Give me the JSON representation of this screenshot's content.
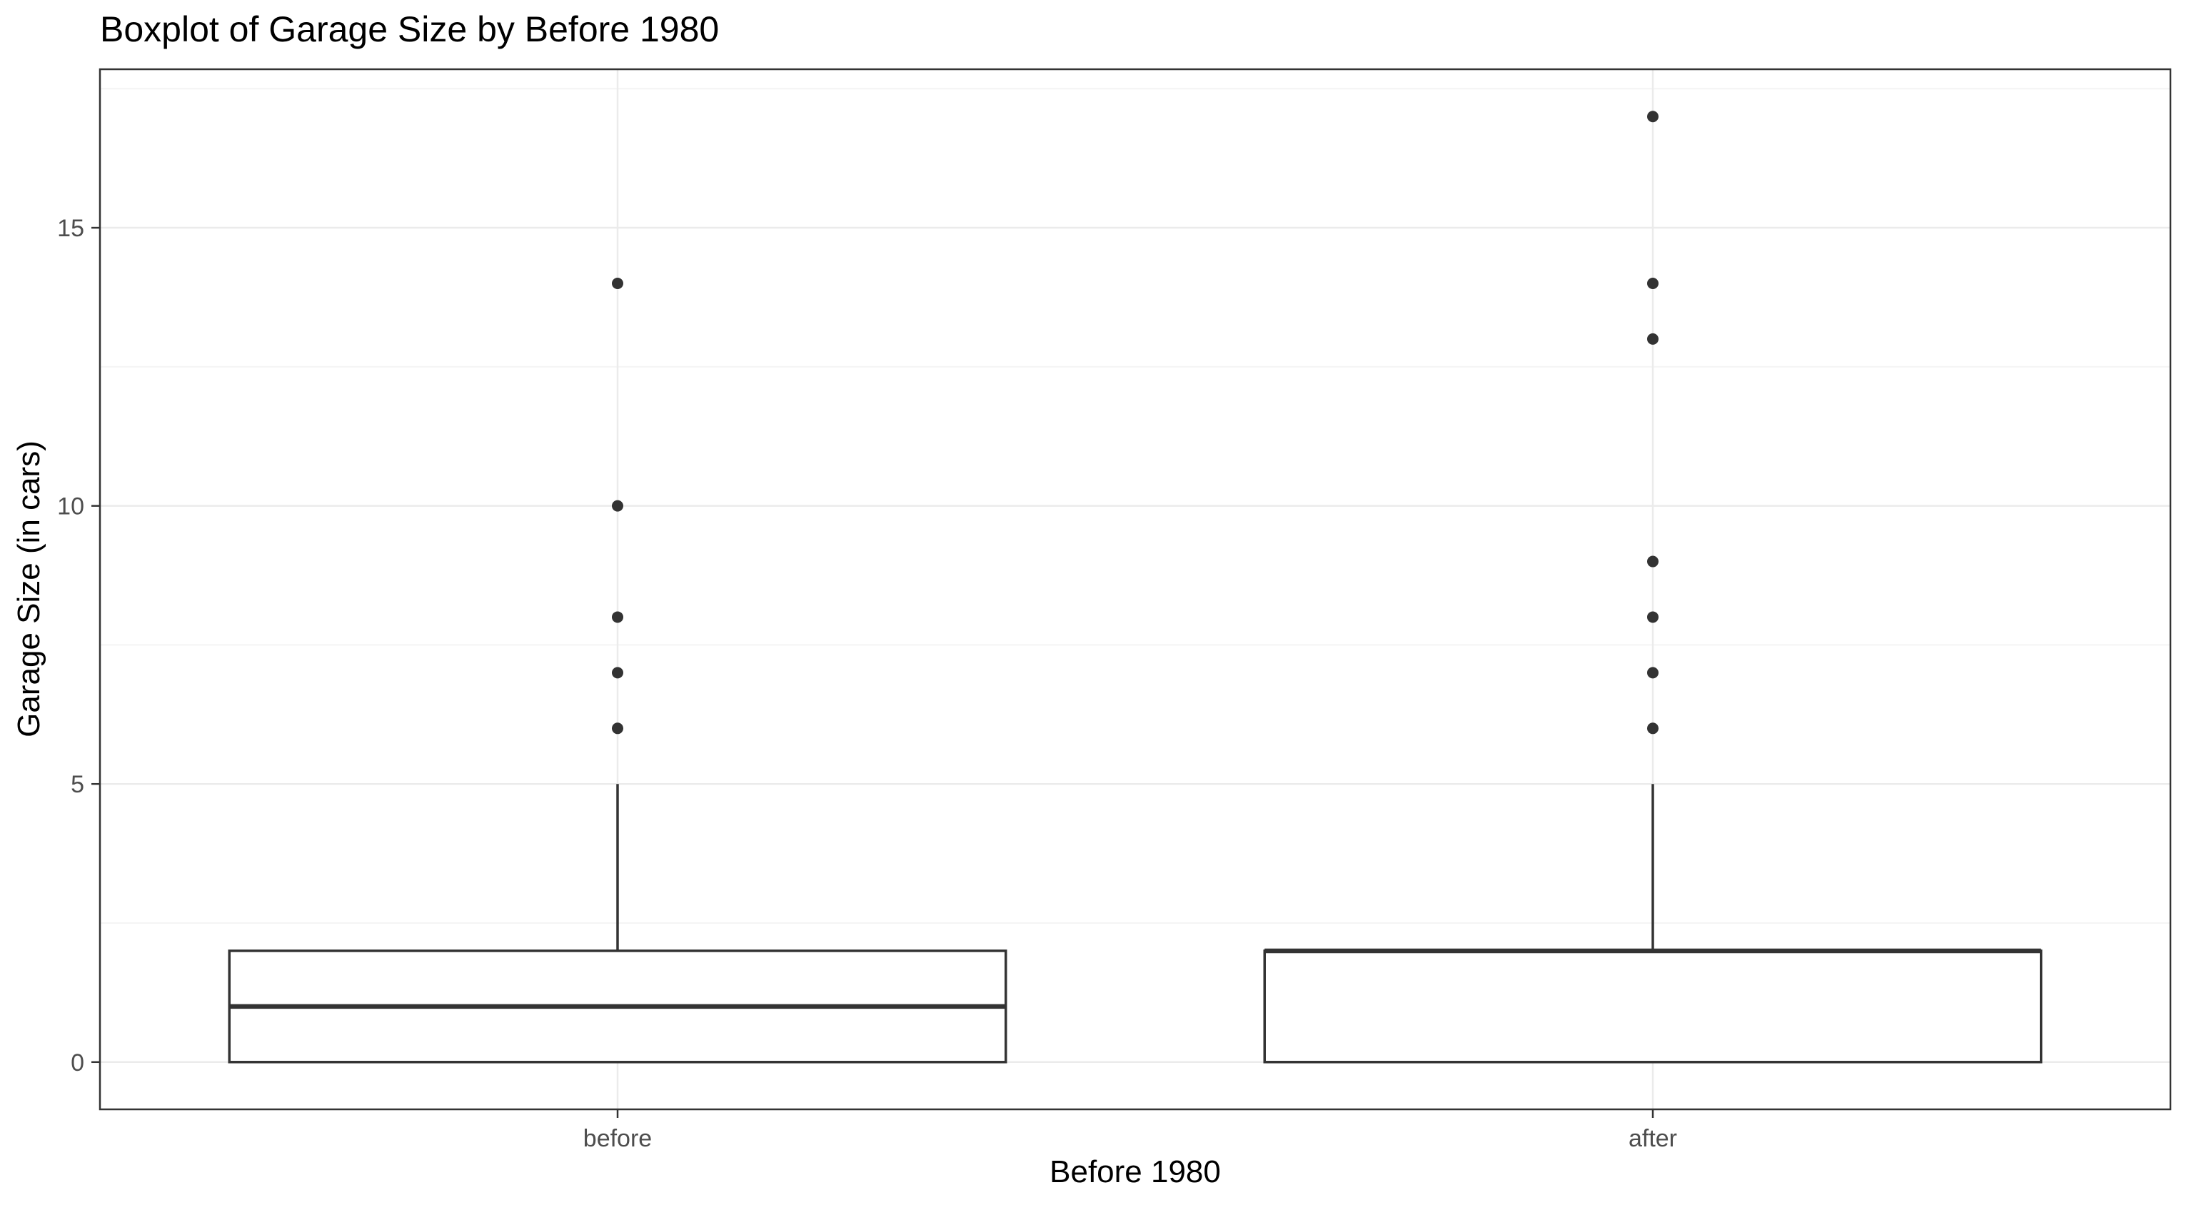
{
  "chart_data": {
    "type": "boxplot",
    "title": "Boxplot of Garage Size by Before 1980",
    "xlabel": "Before 1980",
    "ylabel": "Garage Size (in cars)",
    "categories": [
      "before",
      "after"
    ],
    "ylim": [
      -0.85,
      17.85
    ],
    "yticks": [
      0,
      5,
      10,
      15
    ],
    "ytick_labels": [
      "0",
      "5",
      "10",
      "15"
    ],
    "grid": true,
    "boxes": [
      {
        "category": "before",
        "whisker_low": 0,
        "q1": 0,
        "median": 1,
        "q3": 2,
        "whisker_high": 5,
        "outliers": [
          6,
          7,
          8,
          10,
          14
        ]
      },
      {
        "category": "after",
        "whisker_low": 0,
        "q1": 0,
        "median": 2,
        "q3": 2,
        "whisker_high": 5,
        "outliers": [
          6,
          7,
          8,
          9,
          13,
          14,
          17
        ]
      }
    ],
    "colors": {
      "box_stroke": "#333333",
      "box_fill": "#ffffff",
      "outlier": "#333333",
      "grid_major": "#ebebeb",
      "grid_minor": "#f4f4f4",
      "panel_border": "#333333",
      "tick_label": "#4d4d4d",
      "axis_title": "#000000"
    }
  }
}
